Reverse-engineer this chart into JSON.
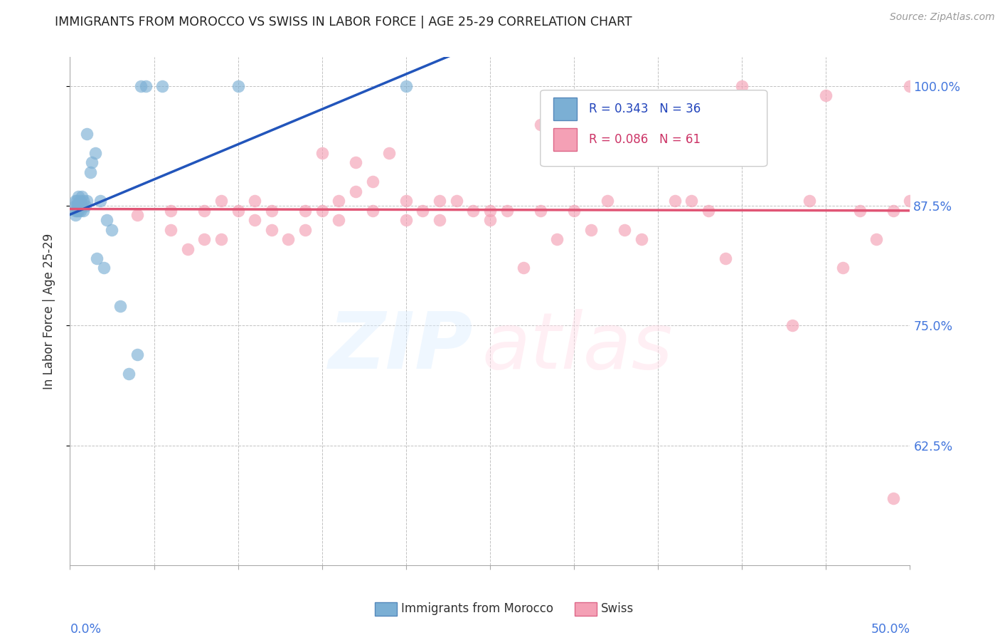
{
  "title": "IMMIGRANTS FROM MOROCCO VS SWISS IN LABOR FORCE | AGE 25-29 CORRELATION CHART",
  "source": "Source: ZipAtlas.com",
  "ylabel": "In Labor Force | Age 25-29",
  "xmin": 0.0,
  "xmax": 0.5,
  "ymin": 0.5,
  "ymax": 1.03,
  "yticks": [
    0.625,
    0.75,
    0.875,
    1.0
  ],
  "ytick_labels": [
    "62.5%",
    "75.0%",
    "87.5%",
    "100.0%"
  ],
  "R_blue": 0.343,
  "N_blue": 36,
  "R_pink": 0.086,
  "N_pink": 61,
  "blue_color": "#7BAFD4",
  "pink_color": "#F4A0B5",
  "blue_line_color": "#2255BB",
  "pink_line_color": "#E05575",
  "blue_points_x": [
    0.003,
    0.003,
    0.003,
    0.003,
    0.004,
    0.004,
    0.004,
    0.005,
    0.005,
    0.005,
    0.006,
    0.006,
    0.006,
    0.007,
    0.007,
    0.008,
    0.008,
    0.009,
    0.01,
    0.01,
    0.012,
    0.013,
    0.015,
    0.016,
    0.018,
    0.02,
    0.022,
    0.025,
    0.03,
    0.035,
    0.04,
    0.042,
    0.045,
    0.055,
    0.1,
    0.2
  ],
  "blue_points_y": [
    0.88,
    0.875,
    0.87,
    0.865,
    0.88,
    0.875,
    0.87,
    0.885,
    0.878,
    0.87,
    0.88,
    0.875,
    0.87,
    0.885,
    0.875,
    0.88,
    0.87,
    0.875,
    0.95,
    0.88,
    0.91,
    0.92,
    0.93,
    0.82,
    0.88,
    0.81,
    0.86,
    0.85,
    0.77,
    0.7,
    0.72,
    1.0,
    1.0,
    1.0,
    1.0,
    1.0
  ],
  "pink_points_x": [
    0.04,
    0.06,
    0.06,
    0.07,
    0.08,
    0.08,
    0.09,
    0.09,
    0.1,
    0.11,
    0.11,
    0.12,
    0.12,
    0.13,
    0.14,
    0.14,
    0.15,
    0.15,
    0.16,
    0.16,
    0.17,
    0.17,
    0.18,
    0.18,
    0.19,
    0.2,
    0.2,
    0.21,
    0.22,
    0.22,
    0.23,
    0.24,
    0.25,
    0.25,
    0.26,
    0.27,
    0.28,
    0.28,
    0.29,
    0.3,
    0.31,
    0.32,
    0.33,
    0.34,
    0.35,
    0.36,
    0.37,
    0.38,
    0.39,
    0.4,
    0.41,
    0.43,
    0.44,
    0.45,
    0.46,
    0.47,
    0.48,
    0.49,
    0.5,
    0.5,
    0.49
  ],
  "pink_points_y": [
    0.865,
    0.85,
    0.87,
    0.83,
    0.87,
    0.84,
    0.88,
    0.84,
    0.87,
    0.86,
    0.88,
    0.87,
    0.85,
    0.84,
    0.85,
    0.87,
    0.87,
    0.93,
    0.86,
    0.88,
    0.89,
    0.92,
    0.87,
    0.9,
    0.93,
    0.86,
    0.88,
    0.87,
    0.86,
    0.88,
    0.88,
    0.87,
    0.87,
    0.86,
    0.87,
    0.81,
    0.96,
    0.87,
    0.84,
    0.87,
    0.85,
    0.88,
    0.85,
    0.84,
    0.98,
    0.88,
    0.88,
    0.87,
    0.82,
    1.0,
    0.97,
    0.75,
    0.88,
    0.99,
    0.81,
    0.87,
    0.84,
    0.87,
    0.88,
    1.0,
    0.57
  ]
}
